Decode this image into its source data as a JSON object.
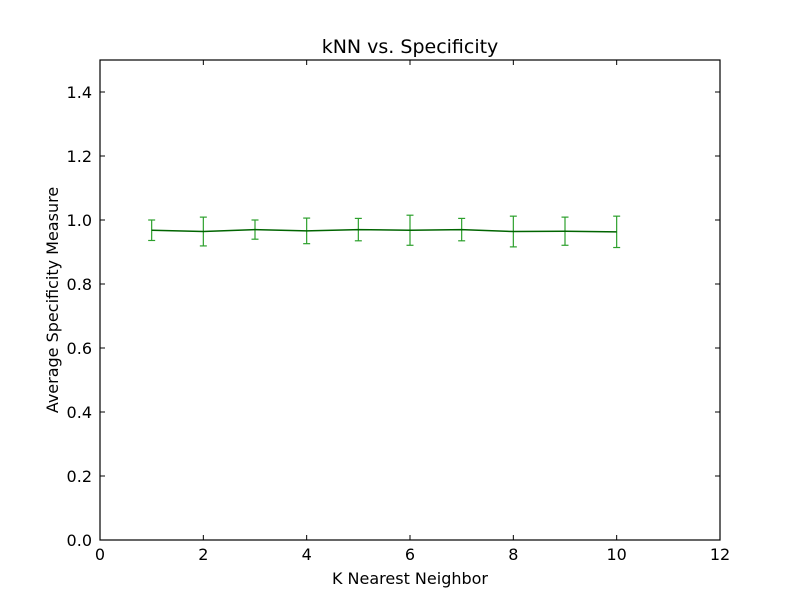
{
  "chart_data": {
    "type": "line",
    "title": "kNN vs. Specificity",
    "xlabel": "K Nearest Neighbor",
    "ylabel": "Average Specificity Measure",
    "xlim": [
      0,
      12
    ],
    "ylim": [
      0.0,
      1.5
    ],
    "xticks": [
      "0",
      "2",
      "4",
      "6",
      "8",
      "10",
      "12"
    ],
    "yticks": [
      "0.0",
      "0.2",
      "0.4",
      "0.6",
      "0.8",
      "1.0",
      "1.2",
      "1.4"
    ],
    "grid": false,
    "legend": "none",
    "series": [
      {
        "x": [
          1,
          2,
          3,
          4,
          5,
          6,
          7,
          8,
          9,
          10
        ],
        "y": [
          0.968,
          0.964,
          0.97,
          0.966,
          0.97,
          0.968,
          0.97,
          0.964,
          0.965,
          0.963
        ],
        "err": [
          0.032,
          0.045,
          0.03,
          0.04,
          0.035,
          0.047,
          0.035,
          0.048,
          0.044,
          0.049
        ],
        "line_color": "#006400",
        "errorbar_color": "#2ca02c"
      }
    ]
  }
}
